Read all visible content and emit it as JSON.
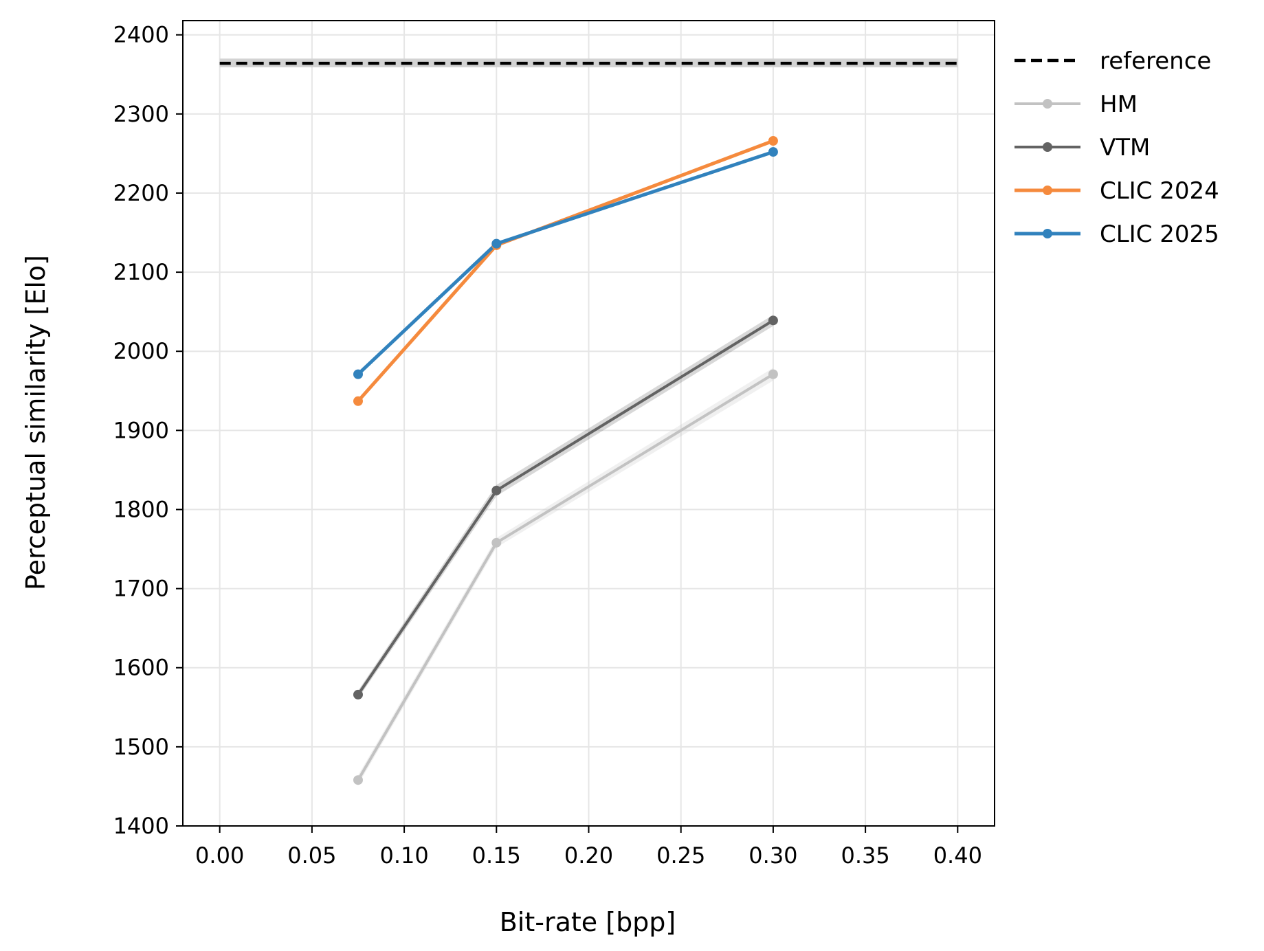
{
  "chart_data": {
    "type": "line",
    "xlabel": "Bit-rate [bpp]",
    "ylabel": "Perceptual similarity [Elo]",
    "xlim": [
      -0.02,
      0.42
    ],
    "ylim": [
      1400,
      2418
    ],
    "xticks": [
      "0.00",
      "0.05",
      "0.10",
      "0.15",
      "0.20",
      "0.25",
      "0.30",
      "0.35",
      "0.40"
    ],
    "yticks": [
      "1400",
      "1500",
      "1600",
      "1700",
      "1800",
      "1900",
      "2000",
      "2100",
      "2200",
      "2300",
      "2400"
    ],
    "grid": true,
    "legend_position": "outside-right-top",
    "reference": {
      "name": "reference",
      "value": 2364,
      "x": [
        0.0,
        0.4
      ],
      "band": [
        2359,
        2370
      ],
      "color": "#000000",
      "band_color": "#d3d3d3"
    },
    "series": [
      {
        "name": "HM",
        "color": "#c2c2c2",
        "x": [
          0.075,
          0.15,
          0.3
        ],
        "values": [
          1458,
          1758,
          1971
        ],
        "band": [
          6,
          6,
          8
        ]
      },
      {
        "name": "VTM",
        "color": "#636363",
        "x": [
          0.075,
          0.15,
          0.3
        ],
        "values": [
          1566,
          1824,
          2039
        ],
        "band": [
          5,
          7,
          7
        ]
      },
      {
        "name": "CLIC 2024",
        "color": "#f58a3d",
        "x": [
          0.075,
          0.15,
          0.3
        ],
        "values": [
          1937,
          2134,
          2266
        ],
        "band": [
          0,
          0,
          0
        ]
      },
      {
        "name": "CLIC 2025",
        "color": "#3182bd",
        "x": [
          0.075,
          0.15,
          0.3
        ],
        "values": [
          1971,
          2136,
          2252
        ],
        "band": [
          0,
          0,
          0
        ]
      }
    ]
  }
}
